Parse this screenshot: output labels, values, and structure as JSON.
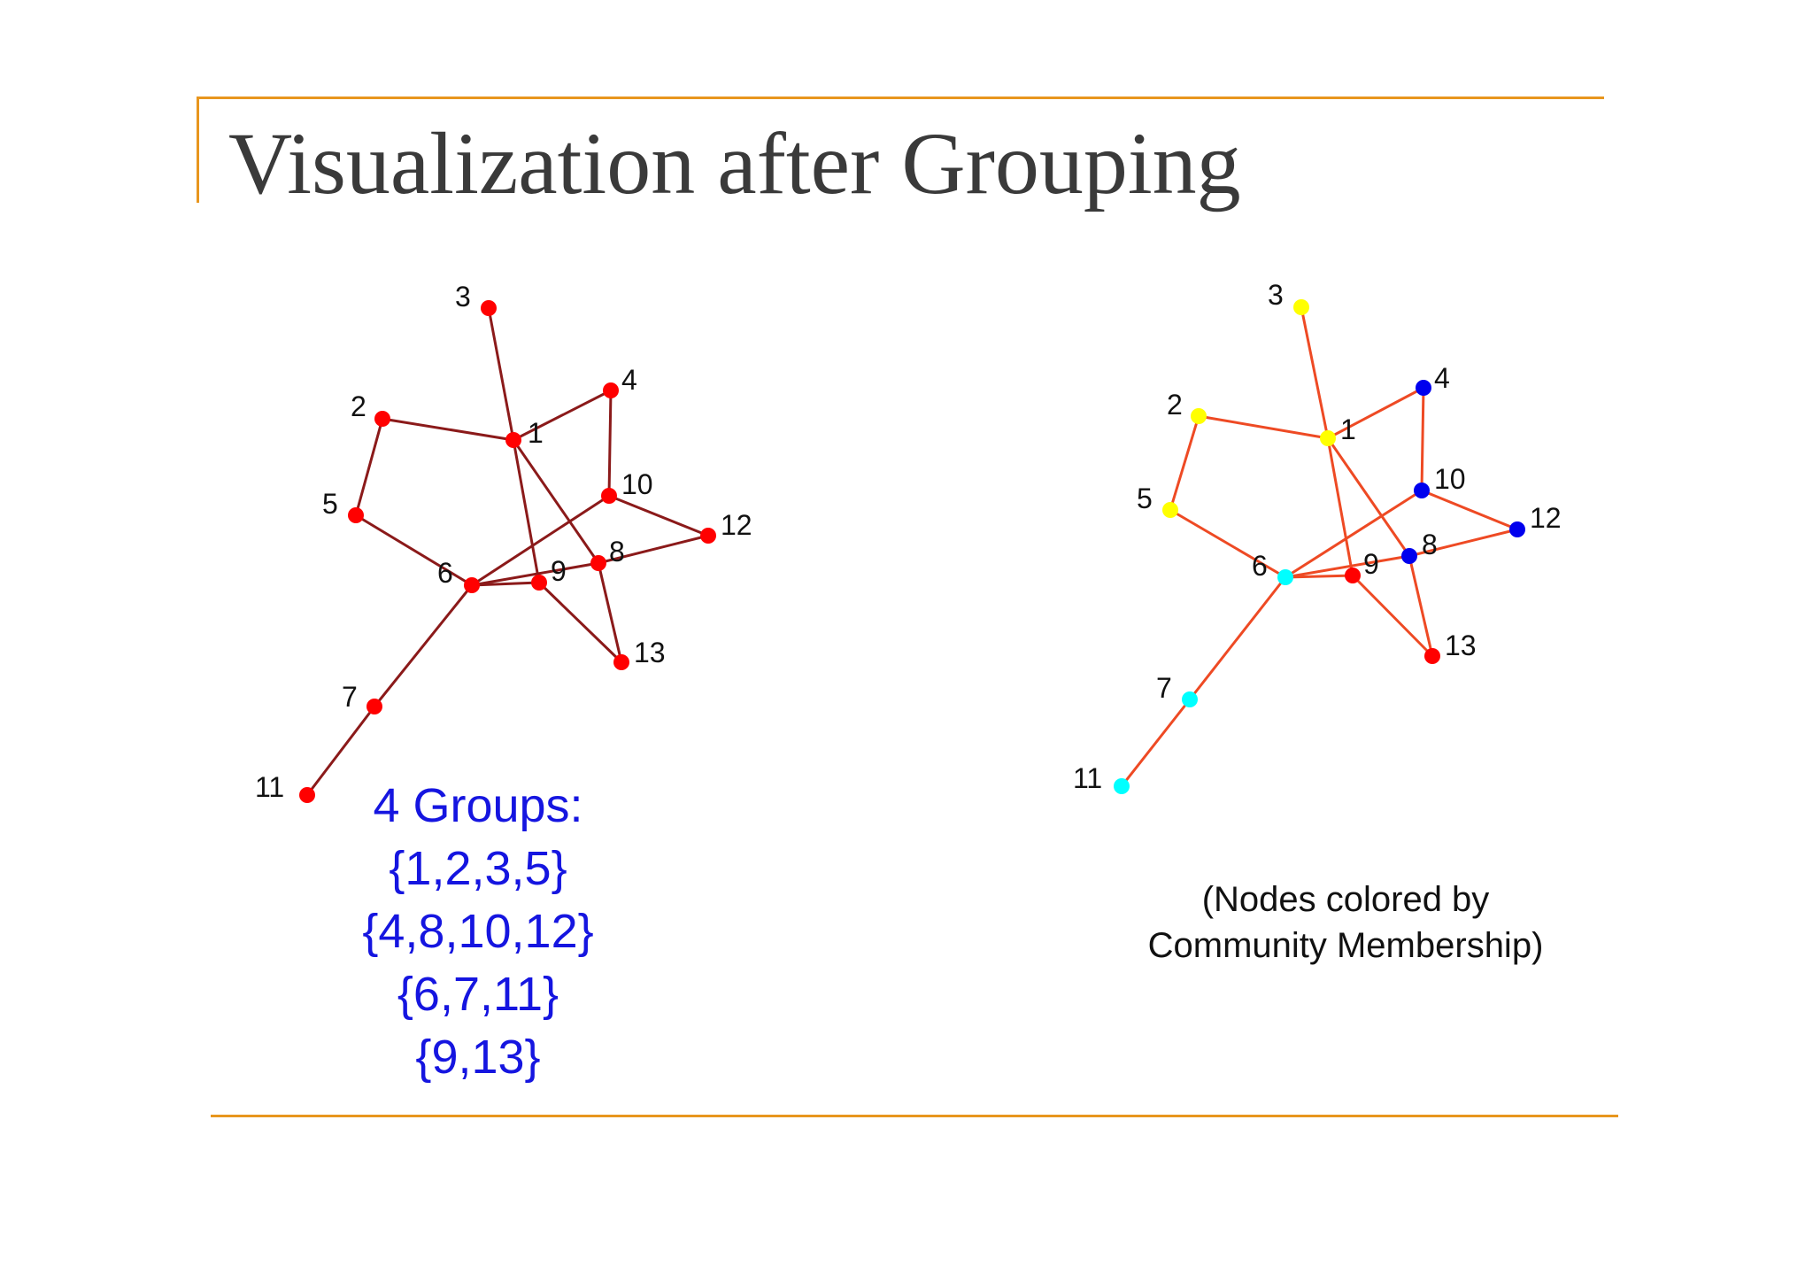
{
  "slide": {
    "title": "Visualization after Grouping",
    "accent_color": "#E8961E"
  },
  "graph": {
    "nodes": [
      "1",
      "2",
      "3",
      "4",
      "5",
      "6",
      "7",
      "8",
      "9",
      "10",
      "11",
      "12",
      "13"
    ],
    "edges": [
      [
        "1",
        "3"
      ],
      [
        "1",
        "2"
      ],
      [
        "1",
        "4"
      ],
      [
        "1",
        "9"
      ],
      [
        "1",
        "8"
      ],
      [
        "2",
        "5"
      ],
      [
        "5",
        "6"
      ],
      [
        "4",
        "10"
      ],
      [
        "10",
        "12"
      ],
      [
        "10",
        "6"
      ],
      [
        "6",
        "9"
      ],
      [
        "6",
        "8"
      ],
      [
        "6",
        "7"
      ],
      [
        "7",
        "11"
      ],
      [
        "8",
        "12"
      ],
      [
        "8",
        "13"
      ],
      [
        "9",
        "13"
      ]
    ],
    "left_panel": {
      "node_color": "#FF0000",
      "edge_color": "#8B1A1A"
    },
    "right_panel": {
      "edge_color": "#EE4A24",
      "community_colors": {
        "1": "#FFFF00",
        "2": "#FFFF00",
        "3": "#FFFF00",
        "5": "#FFFF00",
        "4": "#0000EE",
        "8": "#0000EE",
        "10": "#0000EE",
        "12": "#0000EE",
        "6": "#00FFFF",
        "7": "#00FFFF",
        "11": "#00FFFF",
        "9": "#FF0000",
        "13": "#FF0000"
      }
    }
  },
  "groups": {
    "color": "#1515E0",
    "lines": [
      "4 Groups:",
      "{1,2,3,5}",
      "{4,8,10,12}",
      "{6,7,11}",
      "{9,13}"
    ]
  },
  "caption": {
    "lines": [
      "(Nodes colored by",
      "Community Membership)"
    ]
  }
}
